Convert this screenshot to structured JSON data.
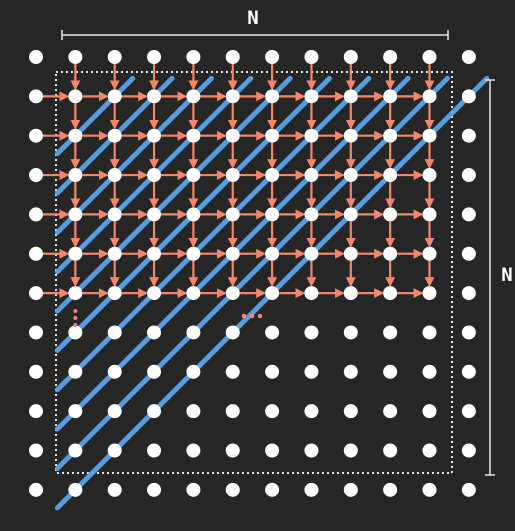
{
  "labels": {
    "top": "N",
    "right": "N"
  },
  "colors": {
    "background": "#262626",
    "node": "#ffffff",
    "arrow": "#f4876b",
    "wavefront": "#5aa8f0",
    "frame": "#e6e6e6"
  },
  "grid": {
    "rows": 12,
    "cols": 12,
    "computed_rows": 6,
    "computed_cols": 10
  },
  "ellipsis": "⋮  ···"
}
